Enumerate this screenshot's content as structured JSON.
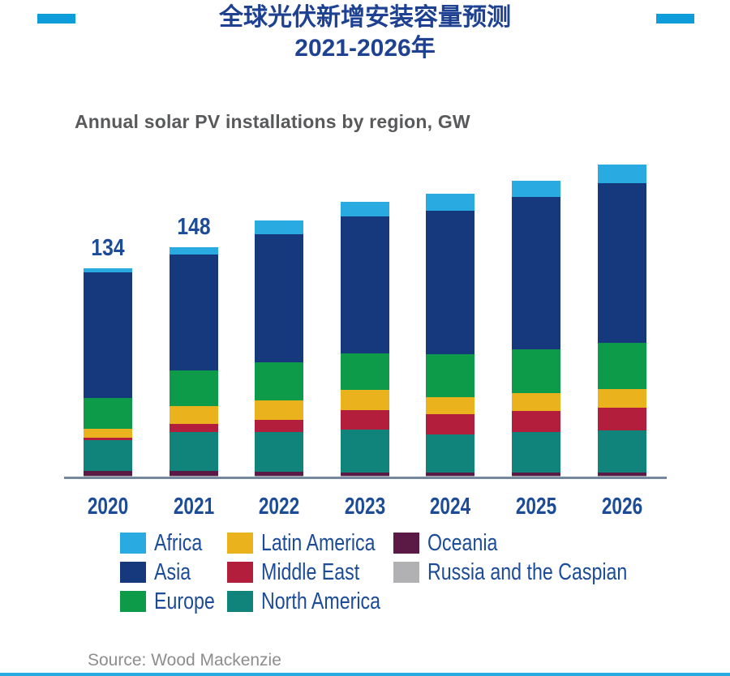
{
  "page": {
    "background": "#ffffff",
    "footer_bar_color": "#29abe2"
  },
  "header": {
    "title_line1": "全球光伏新增安装容量预测",
    "title_line2": "2021-2026年",
    "title_color": "#1e4191",
    "accent_color": "#0f9cdb"
  },
  "subtitle": {
    "text": "Annual solar PV installations by region, GW",
    "color": "#58595b"
  },
  "chart_data": {
    "type": "bar",
    "stacked": true,
    "title": "Annual solar PV installations by region, GW",
    "xlabel": "",
    "ylabel": "GW",
    "grid": false,
    "categories": [
      "2020",
      "2021",
      "2022",
      "2023",
      "2024",
      "2025",
      "2026"
    ],
    "series_stack_order": "bottom_to_top",
    "series": [
      {
        "key": "russia_caspian",
        "name": "Russia and the Caspian",
        "color": "#b1b1b4",
        "values": [
          0.3,
          0.3,
          0.4,
          0.4,
          0.4,
          0.4,
          0.4
        ]
      },
      {
        "key": "oceania",
        "name": "Oceania",
        "color": "#5b1a46",
        "values": [
          3,
          3,
          2.4,
          2.1,
          2.1,
          2.1,
          2.1
        ]
      },
      {
        "key": "north_america",
        "name": "North America",
        "color": "#10837a",
        "values": [
          20,
          25,
          25.6,
          27.7,
          24.6,
          26.2,
          27.2
        ]
      },
      {
        "key": "middle_east",
        "name": "Middle East",
        "color": "#b31e3d",
        "values": [
          1.5,
          5.5,
          7.8,
          12.6,
          13.1,
          13.6,
          14.6
        ]
      },
      {
        "key": "latin_america",
        "name": "Latin America",
        "color": "#eab31e",
        "values": [
          6,
          11.5,
          12.6,
          13.1,
          11,
          11.5,
          12
        ]
      },
      {
        "key": "europe",
        "name": "Europe",
        "color": "#0d9b4a",
        "values": [
          19.5,
          23,
          24.6,
          23.5,
          27.7,
          28.2,
          29.8
        ]
      },
      {
        "key": "asia",
        "name": "Asia",
        "color": "#16387d",
        "values": [
          81,
          74.7,
          82.6,
          88.2,
          92.6,
          98.3,
          103
        ]
      },
      {
        "key": "africa",
        "name": "Africa",
        "color": "#29abe2",
        "values": [
          2.7,
          5,
          9,
          9.4,
          11,
          10.5,
          12
        ]
      }
    ],
    "labeled_totals": {
      "2020": "134",
      "2021": "148"
    },
    "label_color": "#1c4b97",
    "axis_line_color": "#76889d"
  },
  "legend": {
    "text_color": "#1c4b97",
    "columns": [
      [
        "africa",
        "asia",
        "europe"
      ],
      [
        "latin_america",
        "middle_east",
        "north_america"
      ],
      [
        "oceania",
        "russia_caspian"
      ]
    ]
  },
  "source": {
    "text": "Source: Wood Mackenzie",
    "color": "#8d8d8d"
  }
}
